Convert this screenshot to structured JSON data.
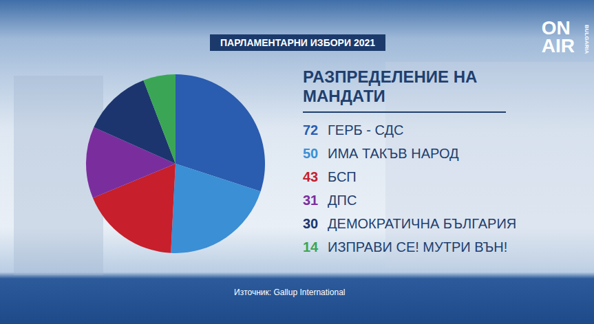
{
  "header": "ПАРЛАМЕНТАРНИ ИЗБОРИ 2021",
  "logo": "ON AIR",
  "logo_sub": "BULGARIA",
  "chart_data": {
    "type": "pie",
    "title": "РАЗПРЕДЕЛЕНИЕ НА МАНДАТИ",
    "categories": [
      "ГЕРБ - СДС",
      "ИМА ТАКЪВ НАРОД",
      "БСП",
      "ДПС",
      "ДЕМОКРАТИЧНА БЪЛГАРИЯ",
      "ИЗПРАВИ СЕ! МУТРИ ВЪН!"
    ],
    "values": [
      72,
      50,
      43,
      31,
      30,
      14
    ],
    "colors": [
      "#2a5caf",
      "#3b8fd4",
      "#c71f2b",
      "#7a2e9e",
      "#1d356f",
      "#3aa655"
    ],
    "legend": "right"
  },
  "source": "Източник: Gallup International"
}
